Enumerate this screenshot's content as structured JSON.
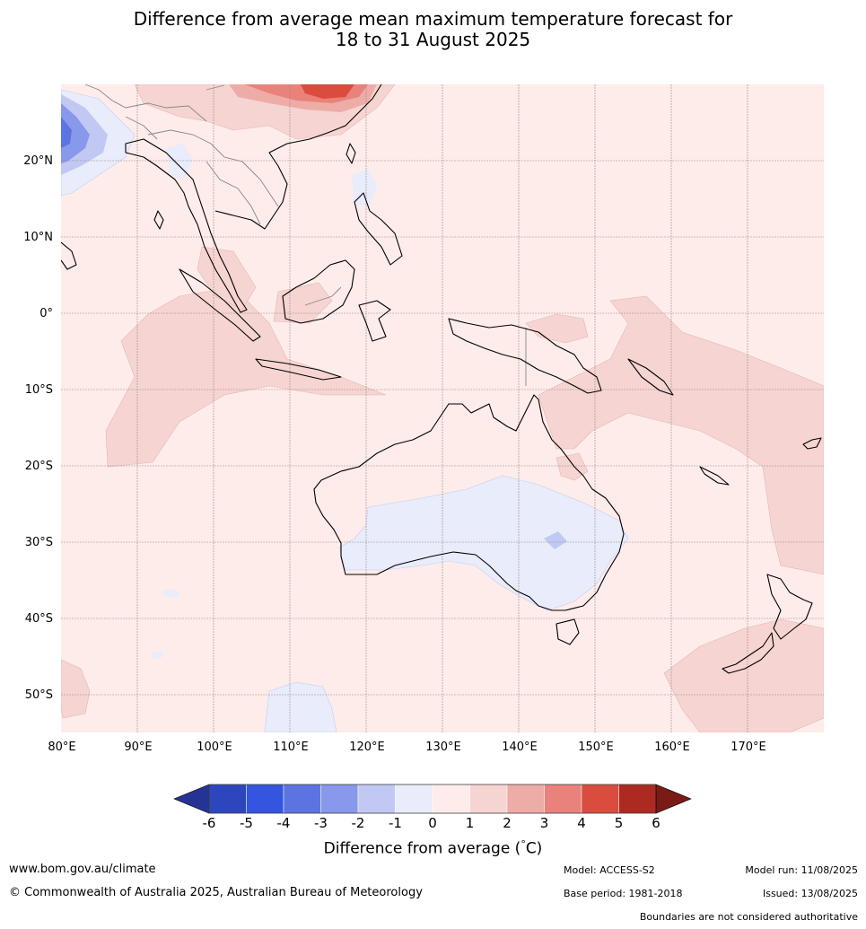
{
  "title_line1": "Difference from average mean maximum temperature forecast for",
  "title_line2": "18 to 31 August 2025",
  "lat_labels": [
    "20°N",
    "10°N",
    "0°",
    "10°S",
    "20°S",
    "30°S",
    "40°S",
    "50°S"
  ],
  "lon_labels": [
    "80°E",
    "90°E",
    "100°E",
    "110°E",
    "120°E",
    "130°E",
    "140°E",
    "150°E",
    "160°E",
    "170°E"
  ],
  "colorbar": {
    "ticks": [
      "-6",
      "-5",
      "-4",
      "-3",
      "-2",
      "-1",
      "0",
      "1",
      "2",
      "3",
      "4",
      "5",
      "6"
    ],
    "colors": [
      "#253494",
      "#2c47bd",
      "#3355e0",
      "#5b74e0",
      "#8898ea",
      "#c0c8f3",
      "#e8ecfb",
      "#fdecea",
      "#f6d4d2",
      "#eeaca6",
      "#e8827a",
      "#d94c3e",
      "#ad2a20",
      "#7a1b16"
    ],
    "label": "Difference from average (",
    "unit": "C)",
    "degree": "°"
  },
  "footer": {
    "website": "www.bom.gov.au/climate",
    "copyright": "© Commonwealth of Australia 2025, Australian Bureau of Meteorology",
    "model": "Model: ACCESS-S2",
    "base_period": "Base period: 1981-2018",
    "model_run": "Model run: 11/08/2025",
    "issued": "Issued: 13/08/2025",
    "disclaimer": "Boundaries are not considered authoritative"
  },
  "colors": {
    "ocean_base": "#fdecea",
    "warm_1": "#f6d4d2",
    "warm_2": "#eeaca6",
    "warm_3": "#e8827a",
    "warm_4": "#d94c3e",
    "cool_1": "#e8ecfb",
    "cool_2": "#c0c8f3",
    "cool_3": "#8898ea",
    "cool_4": "#5b74e0"
  }
}
